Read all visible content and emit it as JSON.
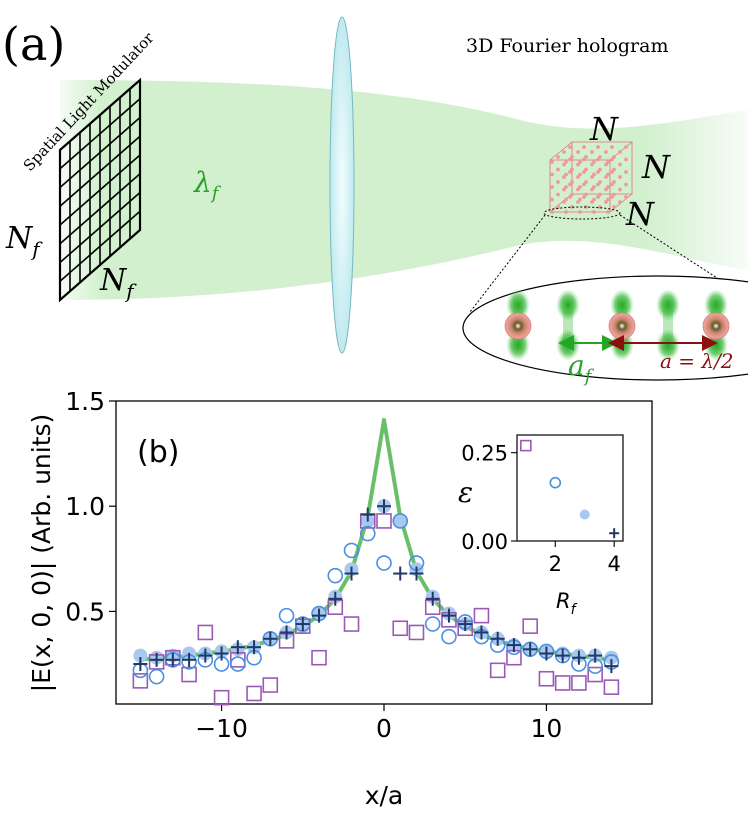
{
  "panel_a": {
    "label": "(a)",
    "slm_title": "Spatial Light Modulator",
    "hologram_title": "3D Fourier hologram",
    "wavelength_sym": "λ",
    "wavelength_sub": "f",
    "slm_dim_sym": "N",
    "slm_dim_sub": "f",
    "cube_dim": "N",
    "spacing_sym": "a",
    "spacing_sub": "f",
    "lattice_eq": "a = λ/2",
    "colors": {
      "beam": "#c8ecc4",
      "lens": "#d4f3f5",
      "trap": "#24a524",
      "atom": "#f5a6a6",
      "atom_core": "#6b5a2a",
      "lattice_arrow": "#8b1010"
    }
  },
  "chart_data": [
    {
      "id": "main",
      "type": "scatter",
      "label": "(b)",
      "xlabel": "x/a",
      "ylabel": "|E(x, 0, 0)| (Arb. units)",
      "xlim": [
        -16.5,
        16.5
      ],
      "ylim": [
        0.06,
        1.5
      ],
      "xticks": [
        -10,
        0,
        10
      ],
      "xtick_labels": [
        "−10",
        "0",
        "10"
      ],
      "yticks": [
        0.5,
        1.0,
        1.5
      ],
      "ytick_labels": [
        "0.5",
        "1.0",
        "1.5"
      ],
      "line": {
        "color": "#6abf69",
        "x": [
          -15,
          -14,
          -13,
          -12,
          -11,
          -10,
          -9,
          -8,
          -7,
          -6,
          -5,
          -4,
          -3,
          -2,
          -1,
          0,
          1,
          2,
          3,
          4,
          5,
          6,
          7,
          8,
          9,
          10,
          11,
          12,
          13,
          14
        ],
        "y": [
          0.27,
          0.28,
          0.28,
          0.29,
          0.3,
          0.31,
          0.32,
          0.34,
          0.36,
          0.39,
          0.43,
          0.48,
          0.56,
          0.69,
          0.95,
          1.41,
          0.95,
          0.69,
          0.56,
          0.48,
          0.43,
          0.39,
          0.36,
          0.34,
          0.32,
          0.31,
          0.3,
          0.29,
          0.28,
          0.27
        ]
      },
      "series": [
        {
          "name": "R_f = 1",
          "marker": "square",
          "color": "#9b59b6",
          "x": [
            -15,
            -14,
            -13,
            -12,
            -11,
            -10,
            -9,
            -8,
            -7,
            -6,
            -5,
            -4,
            -3,
            -2,
            -1,
            0,
            1,
            2,
            3,
            4,
            5,
            6,
            7,
            8,
            9,
            10,
            11,
            12,
            13,
            14
          ],
          "y": [
            0.17,
            0.26,
            0.28,
            0.2,
            0.4,
            0.09,
            0.27,
            0.11,
            0.15,
            0.36,
            0.43,
            0.28,
            0.52,
            0.44,
            0.93,
            0.93,
            0.42,
            0.4,
            0.52,
            0.46,
            0.42,
            0.48,
            0.22,
            0.28,
            0.43,
            0.18,
            0.16,
            0.16,
            0.2,
            0.14
          ]
        },
        {
          "name": "R_f = 2",
          "marker": "circle-open",
          "color": "#4a8fe0",
          "x": [
            -15,
            -14,
            -13,
            -12,
            -11,
            -10,
            -9,
            -8,
            -7,
            -6,
            -5,
            -4,
            -3,
            -2,
            -1,
            0,
            1,
            2,
            3,
            4,
            5,
            6,
            7,
            8,
            9,
            10,
            11,
            12,
            13,
            14
          ],
          "y": [
            0.22,
            0.19,
            0.27,
            0.26,
            0.27,
            0.25,
            0.25,
            0.28,
            0.37,
            0.48,
            0.44,
            0.49,
            0.67,
            0.79,
            0.87,
            0.73,
            0.93,
            0.73,
            0.44,
            0.38,
            0.45,
            0.38,
            0.34,
            0.33,
            0.32,
            0.31,
            0.29,
            0.25,
            0.24,
            0.26
          ]
        },
        {
          "name": "R_f = 3",
          "marker": "circle-filled",
          "color": "#a9c8f0",
          "x": [
            -15,
            -14,
            -13,
            -12,
            -11,
            -10,
            -9,
            -8,
            -7,
            -6,
            -5,
            -4,
            -3,
            -2,
            -1,
            0,
            1,
            2,
            3,
            4,
            5,
            6,
            7,
            8,
            9,
            10,
            11,
            12,
            13,
            14
          ],
          "y": [
            0.29,
            0.28,
            0.29,
            0.3,
            0.3,
            0.31,
            0.32,
            0.33,
            0.37,
            0.4,
            0.43,
            0.49,
            0.57,
            0.7,
            0.93,
            1.0,
            0.93,
            0.7,
            0.57,
            0.49,
            0.44,
            0.4,
            0.37,
            0.34,
            0.32,
            0.31,
            0.3,
            0.29,
            0.29,
            0.28
          ]
        },
        {
          "name": "R_f = 4",
          "marker": "plus",
          "color": "#1f3864",
          "x": [
            -15,
            -14,
            -13,
            -12,
            -11,
            -10,
            -9,
            -8,
            -7,
            -6,
            -5,
            -4,
            -3,
            -2,
            -1,
            0,
            1,
            2,
            3,
            4,
            5,
            6,
            7,
            8,
            9,
            10,
            11,
            12,
            13,
            14
          ],
          "y": [
            0.25,
            0.27,
            0.27,
            0.27,
            0.29,
            0.3,
            0.33,
            0.33,
            0.37,
            0.4,
            0.44,
            0.48,
            0.56,
            0.68,
            0.96,
            1.0,
            0.68,
            0.68,
            0.56,
            0.48,
            0.44,
            0.4,
            0.37,
            0.34,
            0.32,
            0.3,
            0.29,
            0.28,
            0.29,
            0.24
          ]
        }
      ]
    },
    {
      "id": "inset",
      "type": "scatter",
      "xlabel": "R",
      "xlabel_sub": "f",
      "ylabel": "ε",
      "xlim": [
        0.7,
        4.3
      ],
      "ylim": [
        0.0,
        0.3
      ],
      "xticks": [
        2,
        4
      ],
      "xtick_labels": [
        "2",
        "4"
      ],
      "yticks": [
        0.0,
        0.25
      ],
      "ytick_labels": [
        "0.00",
        "0.25"
      ],
      "points": [
        {
          "x": 1,
          "y": 0.27,
          "marker": "square",
          "color": "#9b59b6"
        },
        {
          "x": 2,
          "y": 0.165,
          "marker": "circle-open",
          "color": "#4a8fe0"
        },
        {
          "x": 3,
          "y": 0.075,
          "marker": "circle-filled",
          "color": "#a9c8f0"
        },
        {
          "x": 4,
          "y": 0.022,
          "marker": "plus",
          "color": "#1f3864"
        }
      ]
    }
  ]
}
